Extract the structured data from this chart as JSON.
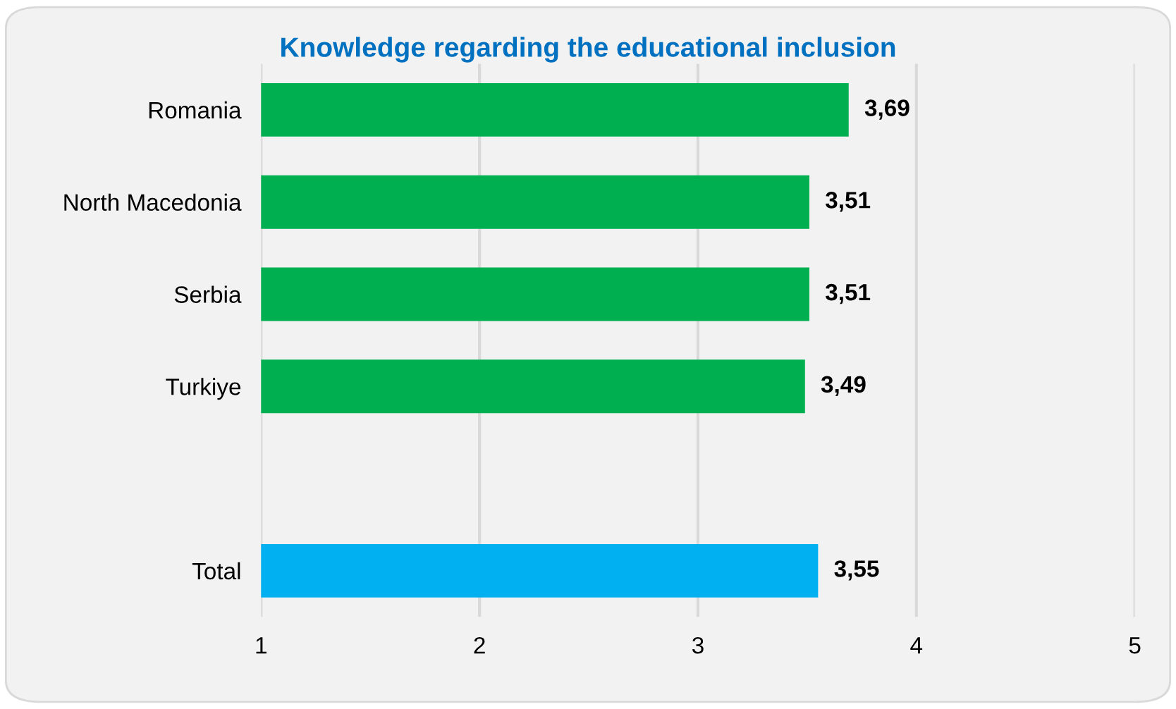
{
  "chart_data": {
    "type": "bar",
    "orientation": "horizontal",
    "title": "Knowledge regarding the educational inclusion",
    "categories": [
      "Romania",
      "North Macedonia",
      "Serbia",
      "Turkiye",
      null,
      "Total"
    ],
    "values": [
      3.69,
      3.51,
      3.51,
      3.49,
      null,
      3.55
    ],
    "colors": [
      "#00b050",
      "#00b050",
      "#00b050",
      "#00b050",
      "#00b050",
      "#00b0f0"
    ],
    "value_labels": [
      "3,69",
      "3,51",
      "3,51",
      "3,49",
      null,
      "3,55"
    ],
    "xlim": [
      1,
      5
    ],
    "xticks": [
      1,
      2,
      3,
      4,
      5
    ],
    "grid": "x"
  }
}
